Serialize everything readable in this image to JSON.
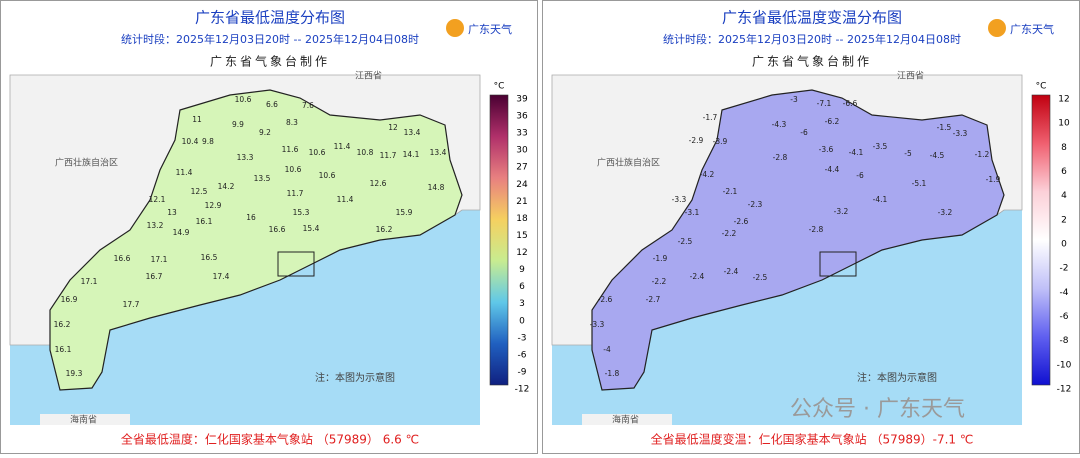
{
  "panels": [
    {
      "title": "广东省最低温度分布图",
      "subtitle": "统计时段：2025年12月03日20时 -- 2025年12月04日08时",
      "agency": "广东省气象台制作",
      "logo": "广东天气",
      "unit": "°C",
      "legend": [
        39,
        36,
        33,
        30,
        27,
        24,
        21,
        18,
        15,
        12,
        9,
        6,
        3,
        0,
        -3,
        -6,
        -9,
        -12
      ],
      "regions": [
        "江西省",
        "广西壮族自治区",
        "海南省"
      ],
      "note": "注：本图为示意图",
      "footer": "全省最低温度：仁化国家基本气象站 （57989） 6.6 ℃",
      "stations": [
        10.6,
        6.6,
        7.6,
        11,
        9.9,
        8.3,
        9.2,
        10.4,
        9.8,
        12,
        13.4,
        13.3,
        11.6,
        10.6,
        11.4,
        10.8,
        14.1,
        13.4,
        11.4,
        13.5,
        10.6,
        10.6,
        11.7,
        12.6,
        14.8,
        12.5,
        14.2,
        11.7,
        12.1,
        12.9,
        15.3,
        11.4,
        15.9,
        13,
        14.9,
        16.1,
        16,
        15.4,
        16.2,
        13.2,
        16.6,
        16.6,
        16.5,
        17.1,
        16.7,
        17.4,
        17.1,
        17.7,
        16.9,
        16.2,
        16.1,
        19.3
      ]
    },
    {
      "title": "广东省最低温度变温分布图",
      "subtitle": "统计时段：2025年12月03日20时 -- 2025年12月04日08时",
      "agency": "广东省气象台制作",
      "logo": "广东天气",
      "unit": "°C",
      "legend": [
        12,
        10,
        8,
        6,
        4,
        2,
        0,
        -2,
        -4,
        -6,
        -8,
        -10,
        -12
      ],
      "regions": [
        "江西省",
        "广西壮族自治区",
        "海南省"
      ],
      "note": "注：本图为示意图",
      "footer": "全省最低温度变温：仁化国家基本气象站 （57989）-7.1 ℃",
      "stations": [
        -3,
        -7.1,
        -6.6,
        -1.7,
        -4.3,
        -6.2,
        -6,
        -2.9,
        -3.9,
        -1.5,
        -3.3,
        -2.8,
        -3.6,
        -4.1,
        -3.5,
        -5,
        -1.2,
        -4.5,
        -4.2,
        -4.4,
        -6,
        -5.1,
        -1.9,
        -2.1,
        -2.3,
        -4.1,
        -3.2,
        -3.3,
        -3.1,
        -2.6,
        -3.2,
        -2.5,
        -2.2,
        -2.8,
        -1.9,
        -2.4,
        -2.4,
        -2.5,
        -2.2,
        -2.7,
        -2.6,
        -3.3,
        -4,
        -1.8
      ]
    }
  ],
  "watermark": "公众号 · 广东天气"
}
